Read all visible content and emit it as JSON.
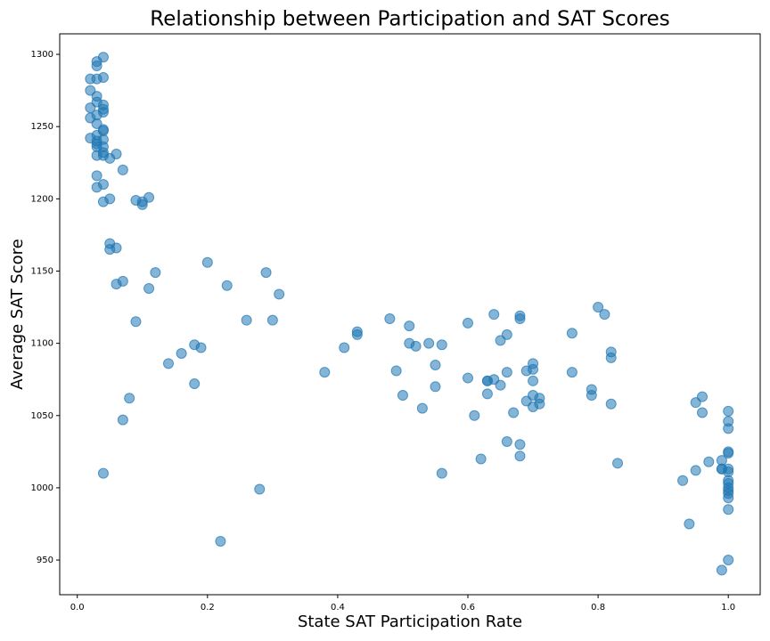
{
  "chart_data": {
    "type": "scatter",
    "title": "Relationship between Participation and SAT Scores",
    "x_label": "State SAT Participation Rate",
    "y_label": "Average SAT Score",
    "color": "#1f77b4",
    "x": [
      0.02,
      0.03,
      0.03,
      0.04,
      0.03,
      0.04,
      0.02,
      0.03,
      0.03,
      0.02,
      0.04,
      0.04,
      0.04,
      0.03,
      0.02,
      0.03,
      0.04,
      0.04,
      0.03,
      0.02,
      0.04,
      0.03,
      0.03,
      0.03,
      0.04,
      0.04,
      0.04,
      0.03,
      0.06,
      0.05,
      0.07,
      0.03,
      0.03,
      0.04,
      0.04,
      0.05,
      0.09,
      0.1,
      0.1,
      0.11,
      0.05,
      0.05,
      0.06,
      0.12,
      0.06,
      0.07,
      0.11,
      0.2,
      0.29,
      0.23,
      0.31,
      0.09,
      0.26,
      0.3,
      0.18,
      0.19,
      0.16,
      0.14,
      0.18,
      0.08,
      0.07,
      0.04,
      0.28,
      0.22,
      0.38,
      0.41,
      0.43,
      0.43,
      0.48,
      0.49,
      0.5,
      0.51,
      0.51,
      0.52,
      0.53,
      0.54,
      0.55,
      0.55,
      0.56,
      0.56,
      0.6,
      0.6,
      0.61,
      0.62,
      0.63,
      0.63,
      0.63,
      0.64,
      0.64,
      0.65,
      0.65,
      0.66,
      0.66,
      0.66,
      0.67,
      0.68,
      0.68,
      0.68,
      0.68,
      0.69,
      0.69,
      0.7,
      0.7,
      0.7,
      0.7,
      0.7,
      0.71,
      0.71,
      0.76,
      0.76,
      0.79,
      0.79,
      0.8,
      0.81,
      0.82,
      0.82,
      0.82,
      0.83,
      0.93,
      0.94,
      0.95,
      0.95,
      0.96,
      0.96,
      0.97,
      0.99,
      0.99,
      0.99,
      0.99,
      1.0,
      1.0,
      1.0,
      1.0,
      1.0,
      1.0,
      1.0,
      1.0,
      1.0,
      1.0,
      1.0,
      1.0,
      1.0,
      1.0,
      1.0
    ],
    "values": [
      1283,
      1295,
      1292,
      1298,
      1283,
      1284,
      1275,
      1271,
      1267,
      1263,
      1265,
      1262,
      1260,
      1258,
      1256,
      1252,
      1248,
      1247,
      1244,
      1242,
      1241,
      1240,
      1238,
      1236,
      1236,
      1232,
      1230,
      1230,
      1231,
      1228,
      1220,
      1216,
      1208,
      1210,
      1198,
      1200,
      1199,
      1198,
      1196,
      1201,
      1169,
      1165,
      1166,
      1149,
      1141,
      1143,
      1138,
      1156,
      1149,
      1140,
      1134,
      1115,
      1116,
      1116,
      1099,
      1097,
      1093,
      1086,
      1072,
      1062,
      1047,
      1010,
      999,
      963,
      1080,
      1097,
      1108,
      1106,
      1117,
      1081,
      1064,
      1112,
      1100,
      1098,
      1055,
      1100,
      1085,
      1070,
      1099,
      1010,
      1114,
      1076,
      1050,
      1020,
      1074,
      1074,
      1065,
      1120,
      1075,
      1102,
      1071,
      1106,
      1080,
      1032,
      1052,
      1119,
      1117,
      1030,
      1022,
      1081,
      1060,
      1086,
      1082,
      1074,
      1064,
      1056,
      1062,
      1058,
      1107,
      1080,
      1068,
      1064,
      1125,
      1120,
      1094,
      1090,
      1058,
      1017,
      1005,
      975,
      1059,
      1012,
      1063,
      1052,
      1018,
      1019,
      1013,
      1013,
      943,
      1053,
      1046,
      1041,
      1025,
      1024,
      1013,
      1011,
      1005,
      1003,
      1000,
      998,
      996,
      993,
      985,
      950
    ],
    "xlim": [
      -0.027,
      1.049
    ],
    "ylim": [
      926,
      1314.2
    ],
    "xticks": [
      {
        "value": 0,
        "label": "0.0"
      },
      0.2,
      0.4,
      0.6,
      0.8,
      {
        "value": 1,
        "label": "1.0"
      }
    ],
    "yticks": [
      950,
      1000,
      1050,
      1100,
      1150,
      1200,
      1250,
      1300
    ]
  }
}
